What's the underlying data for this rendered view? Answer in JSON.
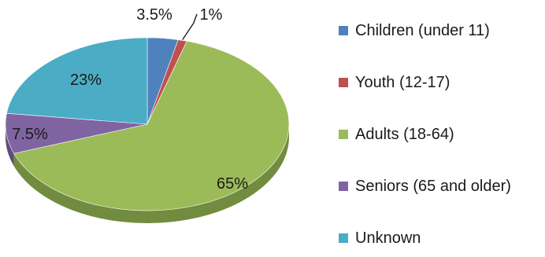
{
  "chart_data": {
    "type": "pie",
    "title": "",
    "style": "3d",
    "legend_position": "right",
    "slices": [
      {
        "label": "Children (under 11)",
        "value": 3.5,
        "display": "3.5%",
        "color": "#4F81BD",
        "side_color": "#3C6595"
      },
      {
        "label": "Youth (12-17)",
        "value": 1,
        "display": "1%",
        "color": "#C0504D",
        "side_color": "#953C3A"
      },
      {
        "label": "Adults (18-64)",
        "value": 65,
        "display": "65%",
        "color": "#9BBB59",
        "side_color": "#718C3E"
      },
      {
        "label": "Seniors (65 and older)",
        "value": 7.5,
        "display": "7.5%",
        "color": "#8064A2",
        "side_color": "#5F4B79"
      },
      {
        "label": "Unknown",
        "value": 23,
        "display": "23%",
        "color": "#4BACC6",
        "side_color": "#37859A"
      }
    ]
  }
}
